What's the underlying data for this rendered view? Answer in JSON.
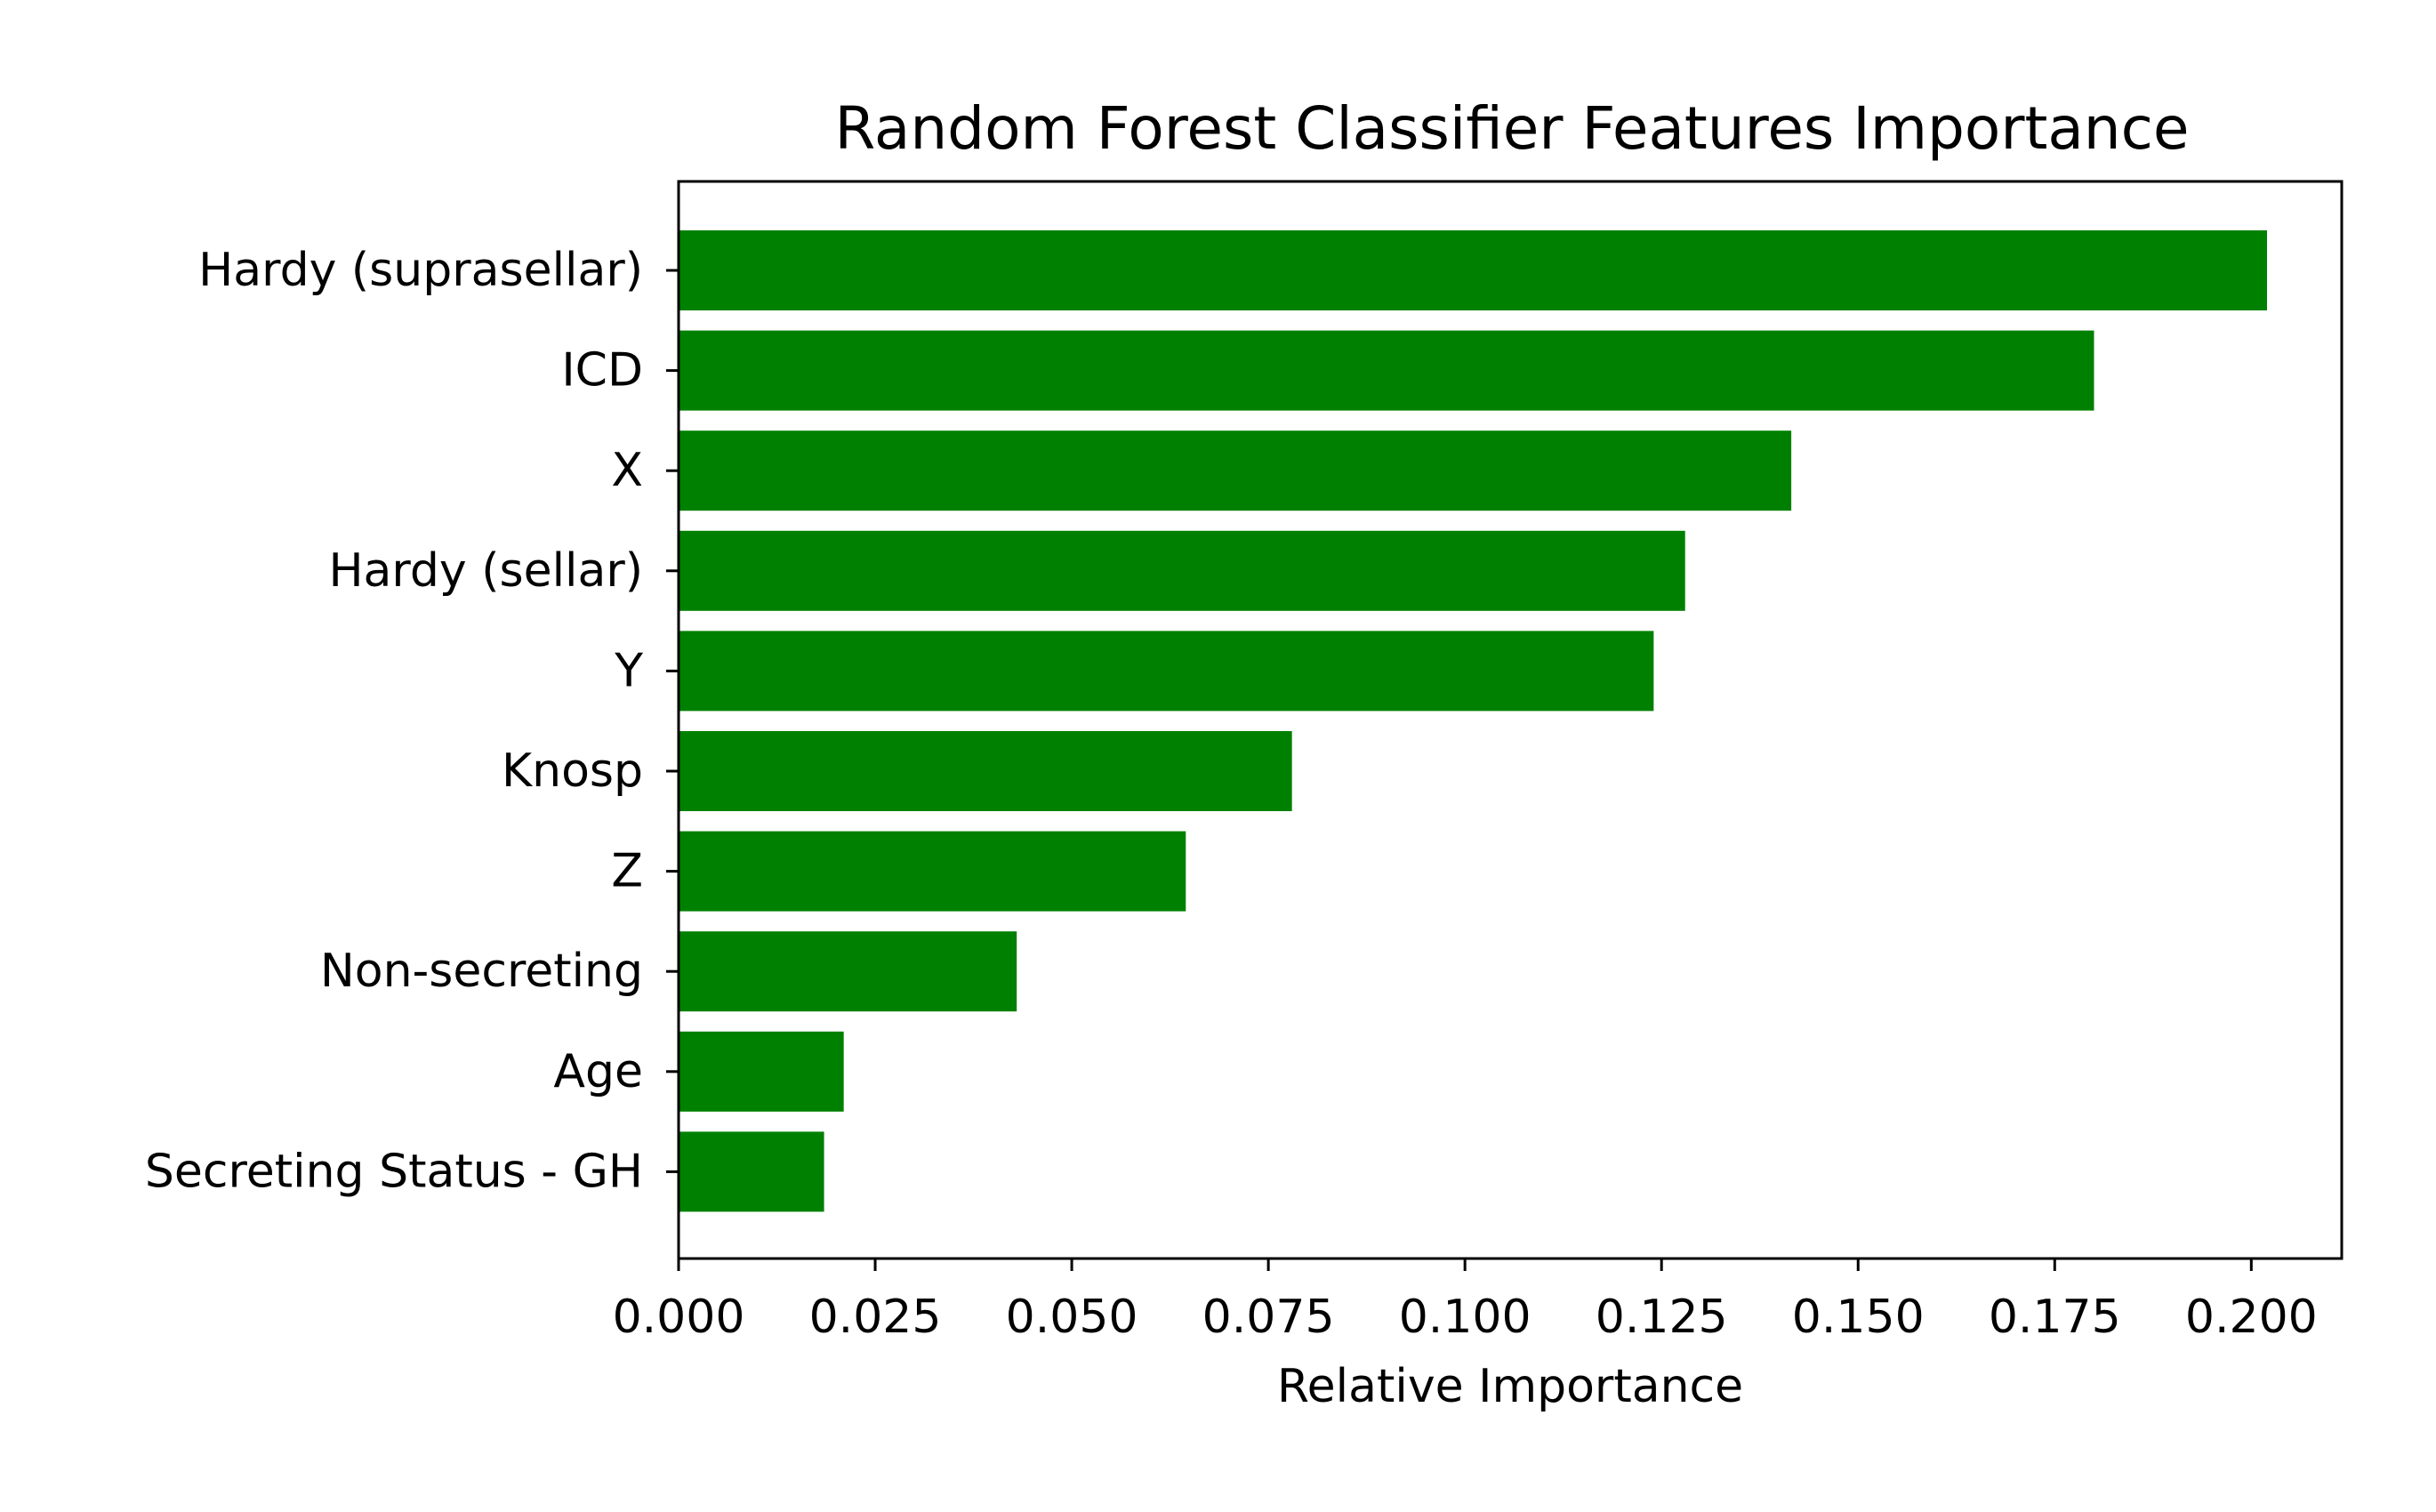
{
  "chart_data": {
    "type": "bar",
    "orientation": "horizontal",
    "title": "Random Forest Classifier Features Importance",
    "xlabel": "Relative Importance",
    "ylabel": "",
    "categories": [
      "Hardy (suprasellar)",
      "ICD",
      "X",
      "Hardy (sellar)",
      "Y",
      "Knosp",
      "Z",
      "Non-secreting",
      "Age",
      "Secreting Status - GH"
    ],
    "values": [
      0.202,
      0.18,
      0.1415,
      0.128,
      0.124,
      0.078,
      0.0645,
      0.043,
      0.021,
      0.0185
    ],
    "xlim": [
      0,
      0.2115
    ],
    "xticks": [
      0.0,
      0.025,
      0.05,
      0.075,
      0.1,
      0.125,
      0.15,
      0.175,
      0.2
    ],
    "xtick_labels": [
      "0.000",
      "0.025",
      "0.050",
      "0.075",
      "0.100",
      "0.125",
      "0.150",
      "0.175",
      "0.200"
    ],
    "bar_color": "#008000",
    "grid": false,
    "legend": "none"
  }
}
